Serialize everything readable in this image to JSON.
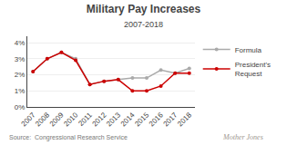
{
  "chart_data": {
    "type": "line",
    "title": "Military Pay Increases",
    "subtitle": "2007-2018",
    "source": "Source:  Congressional Research Service",
    "watermark": "Mother Jones",
    "x": [
      2007,
      2008,
      2009,
      2010,
      2011,
      2012,
      2013,
      2014,
      2015,
      2016,
      2017,
      2018
    ],
    "series": [
      {
        "name": "Formula",
        "color": "#aaaaaa",
        "marker": "circle",
        "values": [
          2.2,
          3.0,
          3.4,
          3.0,
          1.4,
          1.6,
          1.7,
          1.8,
          1.8,
          2.3,
          2.1,
          2.4
        ]
      },
      {
        "name": "President's Request",
        "color": "#cc0000",
        "marker": "circle",
        "values": [
          2.2,
          3.0,
          3.4,
          2.9,
          1.4,
          1.6,
          1.7,
          1.0,
          1.0,
          1.3,
          2.1,
          2.1
        ]
      }
    ],
    "xlim": [
      2006.6,
      2018.4
    ],
    "xticks": [
      2007,
      2008,
      2009,
      2010,
      2011,
      2012,
      2013,
      2014,
      2015,
      2016,
      2017,
      2018
    ],
    "ylim": [
      0,
      4.4
    ],
    "yticks": [
      {
        "value": 0,
        "label": "0%"
      },
      {
        "value": 1,
        "label": "1%"
      },
      {
        "value": 2,
        "label": "2%"
      },
      {
        "value": 3,
        "label": "3%"
      },
      {
        "value": 4,
        "label": "4%"
      }
    ],
    "grid": true,
    "legend": "right"
  }
}
